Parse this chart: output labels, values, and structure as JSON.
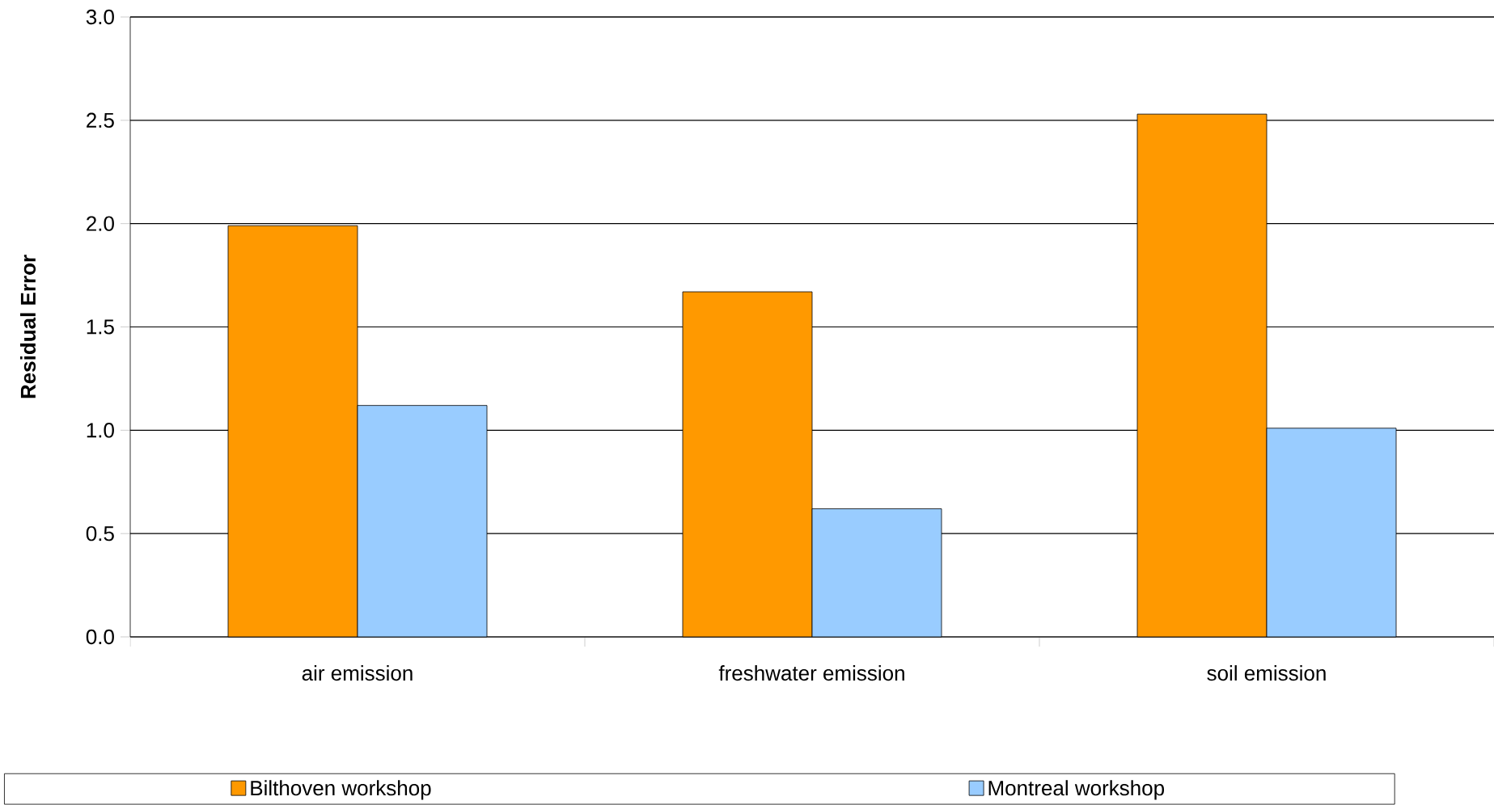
{
  "chart_data": {
    "type": "bar",
    "ylabel": "Residual Error",
    "categories": [
      "air emission",
      "freshwater emission",
      "soil emission"
    ],
    "series": [
      {
        "name": "Bilthoven workshop",
        "color": "#ff9900",
        "values": [
          1.99,
          1.67,
          2.53
        ]
      },
      {
        "name": "Montreal workshop",
        "color": "#99ccff",
        "values": [
          1.12,
          0.62,
          1.01
        ]
      }
    ],
    "ylim": [
      0,
      3
    ],
    "yticks": [
      {
        "value": 0,
        "label": "0.0"
      },
      {
        "value": 0.5,
        "label": "0.5"
      },
      {
        "value": 1,
        "label": "1.0"
      },
      {
        "value": 1.5,
        "label": "1.5"
      },
      {
        "value": 2,
        "label": "2.0"
      },
      {
        "value": 2.5,
        "label": "2.5"
      },
      {
        "value": 3,
        "label": "3.0"
      }
    ],
    "grid": "y",
    "legend": "bottom"
  }
}
